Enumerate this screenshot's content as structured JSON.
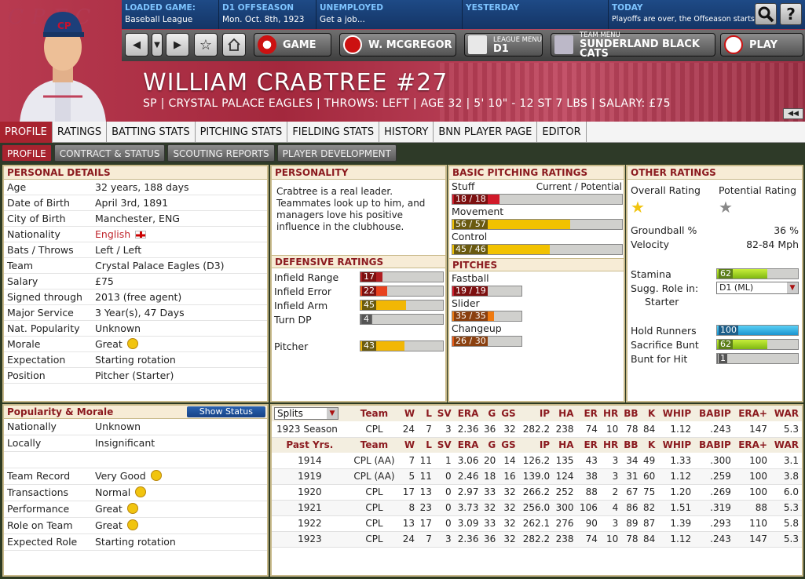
{
  "top": {
    "loaded_label": "LOADED GAME:",
    "loaded_value": "Baseball League",
    "d1_label": "D1 OFFSEASON",
    "d1_value": "Mon. Oct. 8th, 1923",
    "unemp_label": "UNEMPLOYED",
    "unemp_value": "Get a job...",
    "yest_label": "YESTERDAY",
    "yest_value": "",
    "today_label": "TODAY",
    "today_value": "Playoffs are over, the Offseason starts",
    "help": "?"
  },
  "logo": "CPFC",
  "nav": {
    "game": "GAME",
    "manager": "W. MCGREGOR",
    "league_menu": "LEAGUE MENU",
    "league_value": "D1",
    "team_menu": "TEAM MENU",
    "team_value": "SUNDERLAND BLACK CATS",
    "play": "PLAY"
  },
  "player": {
    "name": "WILLIAM CRABTREE  #27",
    "subtitle": "SP | CRYSTAL PALACE EAGLES | THROWS: LEFT | AGE 32 | 5' 10\" - 12 ST 7 LBS | SALARY: £75"
  },
  "tabs": [
    "PROFILE",
    "RATINGS",
    "BATTING STATS",
    "PITCHING STATS",
    "FIELDING STATS",
    "HISTORY",
    "BNN PLAYER PAGE",
    "EDITOR"
  ],
  "subtabs": [
    "PROFILE",
    "CONTRACT & STATUS",
    "SCOUTING REPORTS",
    "PLAYER DEVELOPMENT"
  ],
  "personal": {
    "title": "PERSONAL DETAILS",
    "rows": [
      [
        "Age",
        "32 years, 188 days"
      ],
      [
        "Date of Birth",
        "April 3rd, 1891"
      ],
      [
        "City of Birth",
        "Manchester, ENG"
      ],
      [
        "Nationality",
        "English"
      ],
      [
        "Bats / Throws",
        "Left / Left"
      ],
      [
        "Team",
        "Crystal Palace Eagles (D3)"
      ],
      [
        "Salary",
        "£75"
      ],
      [
        "Signed through",
        "2013 (free agent)"
      ],
      [
        "Major Service",
        "3 Year(s), 47 Days"
      ],
      [
        "Nat. Popularity",
        "Unknown"
      ],
      [
        "Morale",
        "Great"
      ],
      [
        "Expectation",
        "Starting rotation"
      ],
      [
        "Position",
        "Pitcher (Starter)"
      ]
    ]
  },
  "popularity": {
    "title": "Popularity & Morale",
    "button": "Show Status",
    "rows": [
      [
        "Nationally",
        "Unknown"
      ],
      [
        "Locally",
        "Insignificant"
      ],
      [
        "",
        ""
      ],
      [
        "Team Record",
        "Very Good"
      ],
      [
        "Transactions",
        "Normal"
      ],
      [
        "Performance",
        "Great"
      ],
      [
        "Role on Team",
        "Great"
      ],
      [
        "Expected Role",
        "Starting rotation"
      ]
    ]
  },
  "personality": {
    "title": "PERSONALITY",
    "text": "Crabtree is a real leader. Teammates look up to him, and managers love his positive influence in the clubhouse."
  },
  "defensive": {
    "title": "DEFENSIVE RATINGS",
    "rows": [
      {
        "label": "Infield Range",
        "value": "17",
        "pct": 17,
        "color": "#b01e23"
      },
      {
        "label": "Infield Error",
        "value": "22",
        "pct": 22,
        "color": "#e8421e"
      },
      {
        "label": "Infield Arm",
        "value": "45",
        "pct": 45,
        "color": "#f2b705"
      },
      {
        "label": "Turn DP",
        "value": "4",
        "pct": 4,
        "color": "#666"
      },
      {
        "label": "Pitcher",
        "value": "43",
        "pct": 43,
        "color": "#f2b705"
      }
    ]
  },
  "pitching": {
    "title": "BASIC PITCHING RATINGS",
    "cur_pot": "Current / Potential",
    "rows": [
      {
        "label": "Stuff",
        "value": "18 / 18",
        "pct": 18,
        "pot": 18,
        "color": "#d11a2a"
      },
      {
        "label": "Movement",
        "value": "56 / 57",
        "pct": 56,
        "pot": 57,
        "color": "#f2c200"
      },
      {
        "label": "Control",
        "value": "45 / 46",
        "pct": 45,
        "pot": 46,
        "color": "#f2c200"
      }
    ],
    "pitches_title": "PITCHES",
    "pitches": [
      {
        "label": "Fastball",
        "value": "19 / 19",
        "pct": 19,
        "color": "#d11a2a"
      },
      {
        "label": "Slider",
        "value": "35 / 35",
        "pct": 35,
        "color": "#ef7a10"
      },
      {
        "label": "Changeup",
        "value": "26 / 30",
        "pct": 26,
        "color": "#ec5a14"
      }
    ]
  },
  "other": {
    "title": "OTHER RATINGS",
    "overall": "Overall Rating",
    "potential": "Potential Rating",
    "ground": "Groundball %",
    "ground_v": "36 %",
    "velocity": "Velocity",
    "velocity_v": "82-84 Mph",
    "stamina": "Stamina",
    "stamina_v": "62",
    "role": "Sugg. Role in:",
    "role_select": "D1 (ML)",
    "role_v": "Starter",
    "hold": "Hold Runners",
    "hold_v": "100",
    "sac": "Sacrifice Bunt",
    "sac_v": "62",
    "bunt": "Bunt for Hit",
    "bunt_v": "1"
  },
  "stats": {
    "splits": "Splits",
    "headers": [
      "Team",
      "W",
      "L",
      "SV",
      "ERA",
      "G",
      "GS",
      "IP",
      "HA",
      "ER",
      "HR",
      "BB",
      "K",
      "WHIP",
      "BABIP",
      "ERA+",
      "WAR"
    ],
    "season_label": "1923 Season",
    "season": [
      "CPL",
      "24",
      "7",
      "3",
      "2.36",
      "36",
      "32",
      "282.2",
      "238",
      "74",
      "10",
      "78",
      "84",
      "1.12",
      ".243",
      "147",
      "5.3"
    ],
    "past_label": "Past Yrs.",
    "past": [
      [
        "1914",
        "CPL (AA)",
        "7",
        "11",
        "1",
        "3.06",
        "20",
        "14",
        "126.2",
        "135",
        "43",
        "3",
        "34",
        "49",
        "1.33",
        ".300",
        "100",
        "3.1"
      ],
      [
        "1919",
        "CPL (AA)",
        "5",
        "11",
        "0",
        "2.46",
        "18",
        "16",
        "139.0",
        "124",
        "38",
        "3",
        "31",
        "60",
        "1.12",
        ".259",
        "100",
        "3.8"
      ],
      [
        "1920",
        "CPL",
        "17",
        "13",
        "0",
        "2.97",
        "33",
        "32",
        "266.2",
        "252",
        "88",
        "2",
        "67",
        "75",
        "1.20",
        ".269",
        "100",
        "6.0"
      ],
      [
        "1921",
        "CPL",
        "8",
        "23",
        "0",
        "3.73",
        "32",
        "32",
        "256.0",
        "300",
        "106",
        "4",
        "86",
        "82",
        "1.51",
        ".319",
        "88",
        "5.3"
      ],
      [
        "1922",
        "CPL",
        "13",
        "17",
        "0",
        "3.09",
        "33",
        "32",
        "262.1",
        "276",
        "90",
        "3",
        "89",
        "87",
        "1.39",
        ".293",
        "110",
        "5.8"
      ],
      [
        "1923",
        "CPL",
        "24",
        "7",
        "3",
        "2.36",
        "36",
        "32",
        "282.2",
        "238",
        "74",
        "10",
        "78",
        "84",
        "1.12",
        ".243",
        "147",
        "5.3"
      ]
    ]
  }
}
